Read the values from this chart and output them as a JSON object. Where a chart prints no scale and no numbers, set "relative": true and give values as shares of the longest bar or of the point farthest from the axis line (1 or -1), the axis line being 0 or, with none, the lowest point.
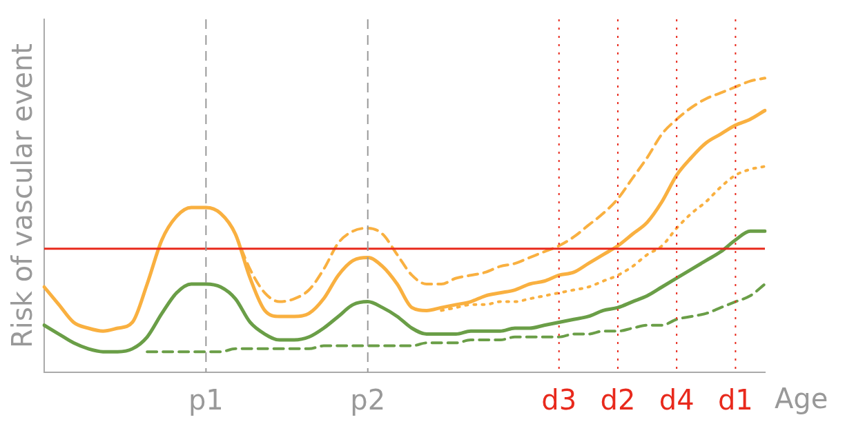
{
  "chart_data": {
    "type": "line",
    "relative": true,
    "xlabel": "Age",
    "ylabel": "Risk of vascular event",
    "tick_labels": "x",
    "legend": false,
    "categories": [
      null,
      null,
      null,
      null,
      null,
      null,
      null,
      null,
      null,
      null,
      null,
      "p1",
      null,
      null,
      null,
      null,
      null,
      null,
      null,
      null,
      null,
      null,
      "p2",
      null,
      null,
      null,
      null,
      null,
      null,
      null,
      null,
      null,
      null,
      null,
      null,
      "d3",
      null,
      null,
      null,
      "d2",
      null,
      null,
      null,
      "d4",
      null,
      null,
      null,
      "d1",
      null,
      null
    ],
    "series": [
      {
        "color": "#f9b040",
        "line_style": "solid",
        "values": [
          0.29,
          0.23,
          0.17,
          0.15,
          0.14,
          0.15,
          0.17,
          0.3,
          0.45,
          0.53,
          0.56,
          0.56,
          0.54,
          0.47,
          0.32,
          0.21,
          0.19,
          0.19,
          0.2,
          0.25,
          0.33,
          0.38,
          0.39,
          0.36,
          0.3,
          0.22,
          0.21,
          0.22,
          0.23,
          0.24,
          0.26,
          0.27,
          0.28,
          0.3,
          0.31,
          0.33,
          0.34,
          0.37,
          0.4,
          0.43,
          0.47,
          0.51,
          0.58,
          0.67,
          0.73,
          0.78,
          0.81,
          0.84,
          0.86,
          0.89
        ]
      },
      {
        "color": "#f9b040",
        "line_style": "dashed",
        "values": [
          null,
          null,
          null,
          null,
          null,
          null,
          null,
          null,
          null,
          null,
          null,
          null,
          null,
          0.47,
          0.35,
          0.27,
          0.24,
          0.25,
          0.28,
          0.35,
          0.44,
          0.48,
          0.49,
          0.47,
          0.4,
          0.33,
          0.3,
          0.3,
          0.32,
          0.33,
          0.34,
          0.36,
          0.37,
          0.39,
          0.41,
          0.43,
          0.46,
          0.5,
          0.54,
          0.59,
          0.66,
          0.73,
          0.81,
          0.86,
          0.9,
          0.93,
          0.95,
          0.97,
          0.99,
          1.0
        ]
      },
      {
        "color": "#f9b040",
        "line_style": "dotted",
        "values": [
          null,
          null,
          null,
          null,
          null,
          null,
          null,
          null,
          null,
          null,
          null,
          null,
          null,
          null,
          null,
          null,
          null,
          null,
          null,
          null,
          null,
          null,
          null,
          null,
          null,
          null,
          null,
          0.21,
          0.22,
          0.23,
          0.23,
          0.24,
          0.24,
          0.25,
          0.26,
          0.27,
          0.28,
          0.29,
          0.31,
          0.33,
          0.36,
          0.4,
          0.43,
          0.49,
          0.54,
          0.58,
          0.63,
          0.67,
          0.69,
          0.7
        ]
      },
      {
        "color": "#6a9e47",
        "line_style": "solid",
        "values": [
          0.16,
          0.13,
          0.1,
          0.08,
          0.07,
          0.07,
          0.08,
          0.12,
          0.2,
          0.27,
          0.3,
          0.3,
          0.29,
          0.25,
          0.17,
          0.13,
          0.11,
          0.11,
          0.12,
          0.15,
          0.19,
          0.23,
          0.24,
          0.22,
          0.19,
          0.15,
          0.13,
          0.13,
          0.13,
          0.14,
          0.14,
          0.14,
          0.15,
          0.15,
          0.16,
          0.17,
          0.18,
          0.19,
          0.21,
          0.22,
          0.24,
          0.26,
          0.29,
          0.32,
          0.35,
          0.38,
          0.41,
          0.45,
          0.48,
          0.48
        ]
      },
      {
        "color": "#6a9e47",
        "line_style": "dashed",
        "values": [
          null,
          null,
          null,
          null,
          null,
          null,
          null,
          0.07,
          0.07,
          0.07,
          0.07,
          0.07,
          0.07,
          0.08,
          0.08,
          0.08,
          0.08,
          0.08,
          0.08,
          0.09,
          0.09,
          0.09,
          0.09,
          0.09,
          0.09,
          0.09,
          0.1,
          0.1,
          0.1,
          0.11,
          0.11,
          0.11,
          0.12,
          0.12,
          0.12,
          0.12,
          0.13,
          0.13,
          0.14,
          0.14,
          0.15,
          0.16,
          0.16,
          0.18,
          0.19,
          0.2,
          0.22,
          0.24,
          0.26,
          0.3
        ]
      }
    ],
    "ref_lines": [
      {
        "axis": "y",
        "value": 0.42,
        "color": "#e8291c",
        "line_style": "solid"
      },
      {
        "axis": "x",
        "value": "p1",
        "color": "#999999",
        "line_style": "dashed"
      },
      {
        "axis": "x",
        "value": "p2",
        "color": "#999999",
        "line_style": "dashed"
      },
      {
        "axis": "x",
        "value": "d3",
        "color": "#e8291c",
        "line_style": "dotted"
      },
      {
        "axis": "x",
        "value": "d2",
        "color": "#e8291c",
        "line_style": "dotted"
      },
      {
        "axis": "x",
        "value": "d4",
        "color": "#e8291c",
        "line_style": "dotted"
      },
      {
        "axis": "x",
        "value": "d1",
        "color": "#e8291c",
        "line_style": "dotted"
      }
    ]
  }
}
